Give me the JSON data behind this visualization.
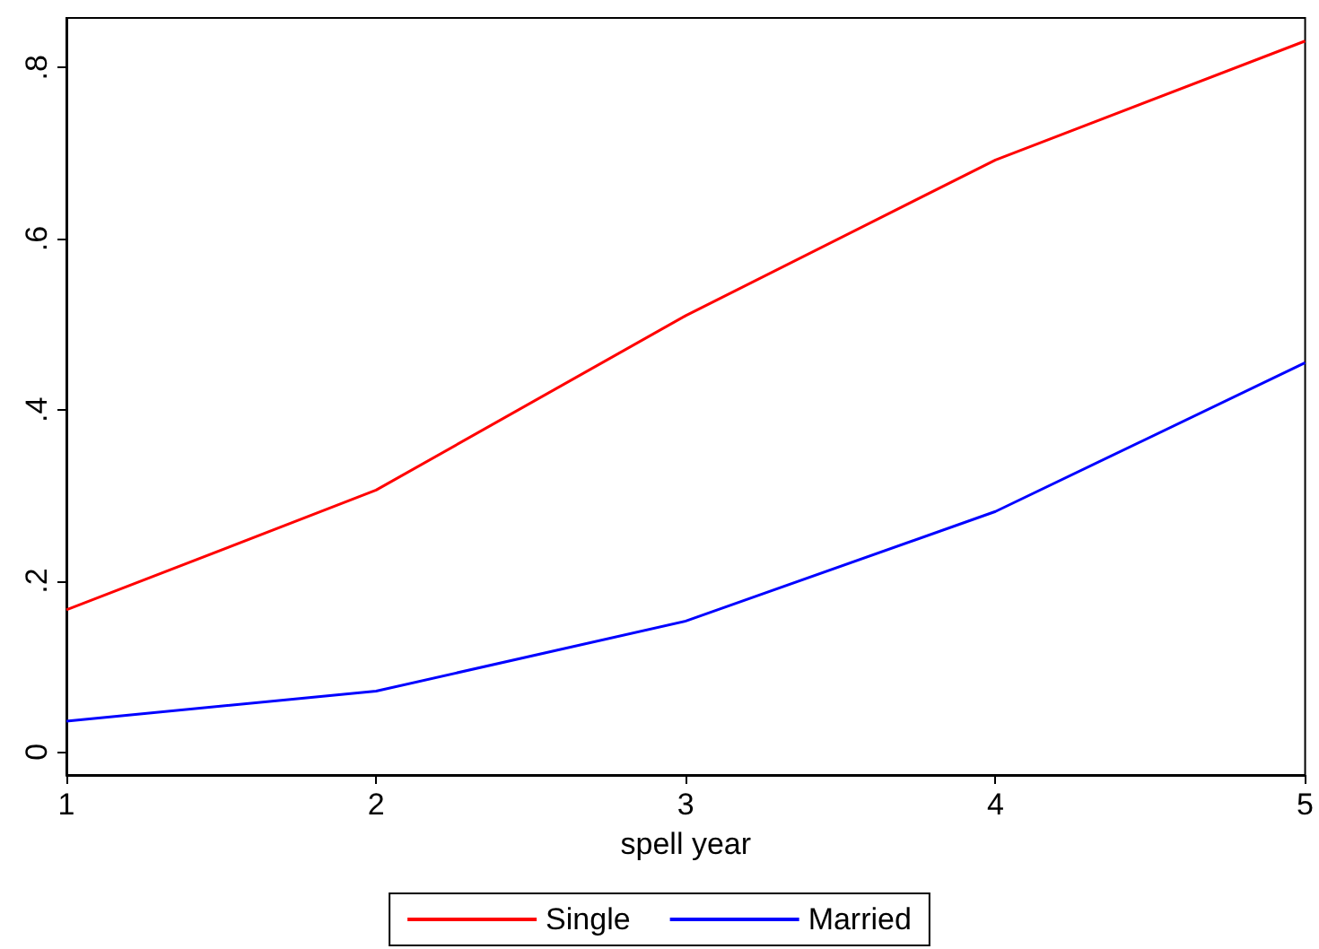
{
  "chart_data": {
    "type": "line",
    "xlabel": "spell year",
    "x": [
      1,
      2,
      3,
      4,
      5
    ],
    "series": [
      {
        "name": "Single",
        "color": "#ff0000",
        "values": [
          0.166,
          0.306,
          0.51,
          0.692,
          0.831
        ]
      },
      {
        "name": "Married",
        "color": "#0000ff",
        "values": [
          0.036,
          0.071,
          0.153,
          0.281,
          0.455
        ]
      }
    ],
    "xlim": [
      1,
      5
    ],
    "xticks": [
      1,
      2,
      3,
      4,
      5
    ],
    "ylim": [
      -0.027,
      0.858
    ],
    "yticks": [
      {
        "value": 0,
        "label": "0"
      },
      {
        "value": 0.2,
        "label": ".2"
      },
      {
        "value": 0.4,
        "label": ".4"
      },
      {
        "value": 0.6,
        "label": ".6"
      },
      {
        "value": 0.8,
        "label": ".8"
      }
    ],
    "grid": false,
    "legend": "bottom",
    "marker": "none",
    "line_style": "solid"
  }
}
